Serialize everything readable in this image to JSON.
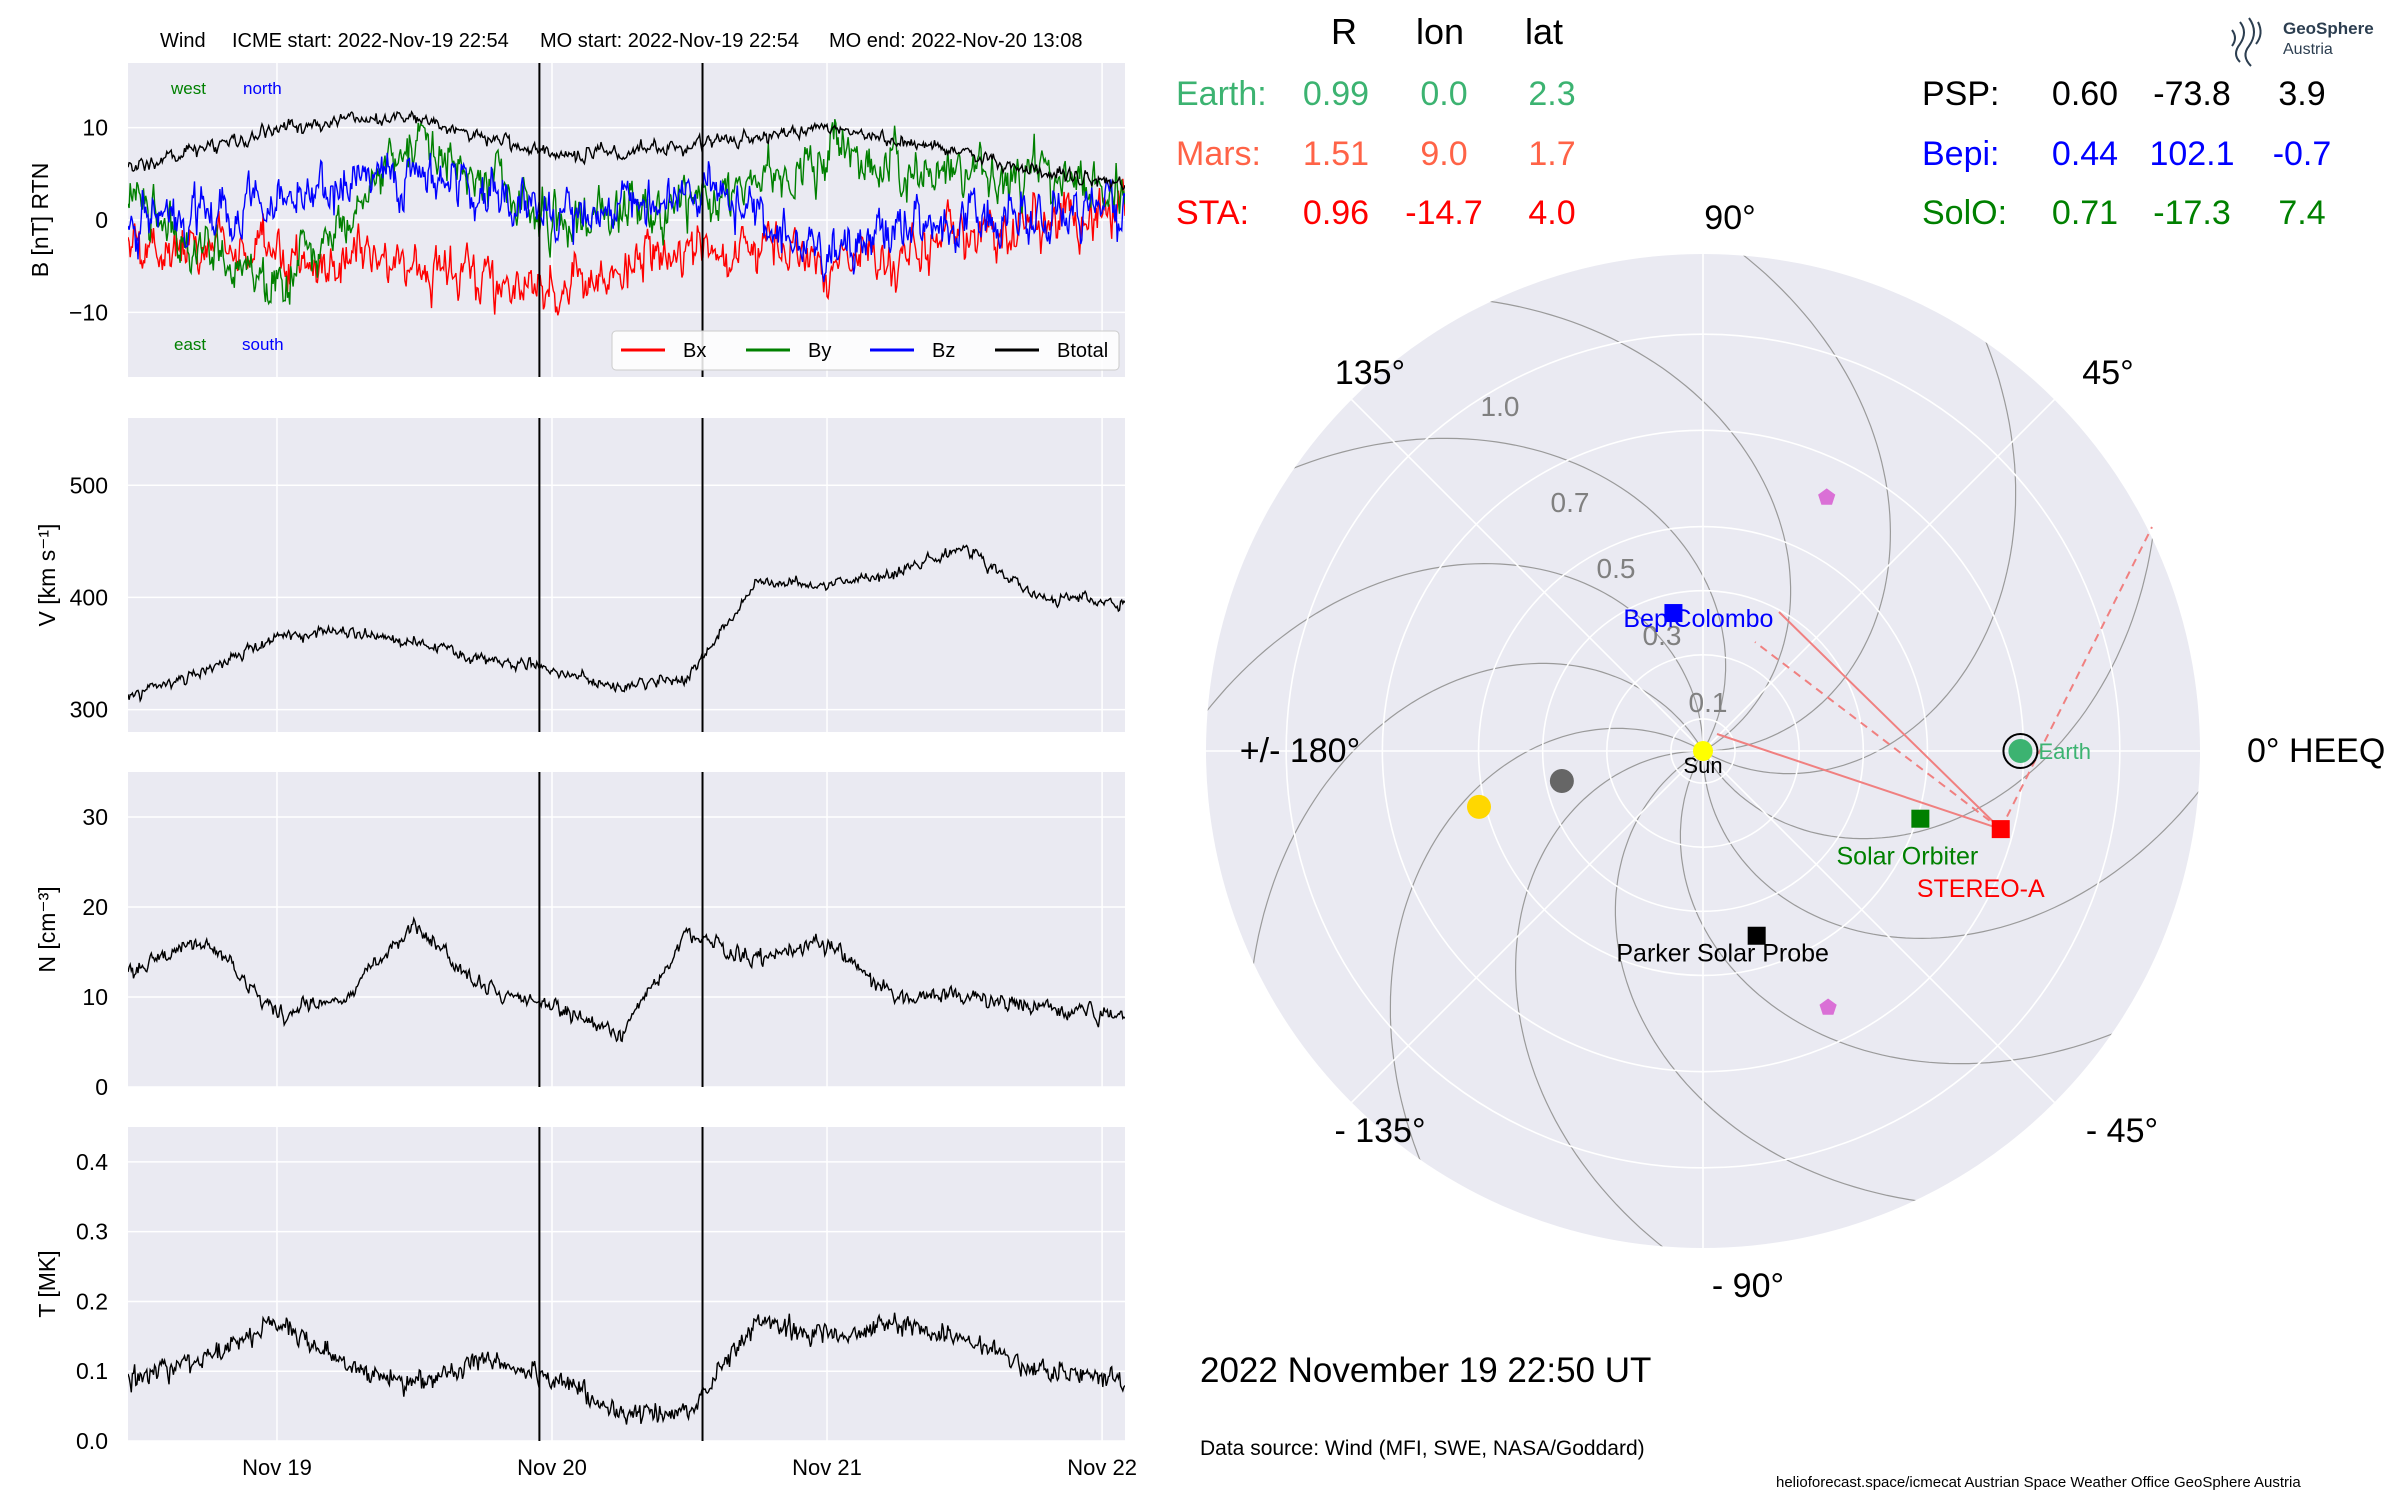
{
  "figure": {
    "header": {
      "instrument": "Wind",
      "icme_start": "ICME start: 2022-Nov-19 22:54",
      "mo_start": "MO start: 2022-Nov-19 22:54",
      "mo_end": "MO end: 2022-Nov-20 13:08"
    },
    "x_ticks": [
      "Nov 19",
      "Nov 20",
      "Nov 21",
      "Nov 22"
    ],
    "footer": {
      "timestamp": "2022 November 19  22:50 UT",
      "data_source": "Data source: Wind (MFI, SWE, NASA/Goddard)",
      "credits": "helioforecast.space/icmecat   Austrian Space Weather Office   GeoSphere Austria",
      "logo_text_1": "GeoSphere",
      "logo_text_2": "Austria"
    },
    "colors": {
      "bx": "#ff0000",
      "by": "#008000",
      "bz": "#0000ff",
      "btotal": "#000000",
      "earth": "#3cb371",
      "mars": "#ff6347",
      "sta": "#ff0000",
      "psp": "#000000",
      "bepi": "#0000ff",
      "solo": "#008000",
      "panel_bg": "#eaeaf2"
    }
  },
  "position_table": {
    "headers": [
      "R",
      "lon",
      "lat"
    ],
    "left_rows": [
      {
        "name": "Earth:",
        "r": "0.99",
        "lon": "0.0",
        "lat": "2.3",
        "color": "#3cb371"
      },
      {
        "name": "Mars:",
        "r": "1.51",
        "lon": "9.0",
        "lat": "1.7",
        "color": "#ff6347"
      },
      {
        "name": "STA:",
        "r": "0.96",
        "lon": "-14.7",
        "lat": "4.0",
        "color": "#ff0000"
      }
    ],
    "right_rows": [
      {
        "name": "PSP:",
        "r": "0.60",
        "lon": "-73.8",
        "lat": "3.9",
        "color": "#000000"
      },
      {
        "name": "Bepi:",
        "r": "0.44",
        "lon": "102.1",
        "lat": "-0.7",
        "color": "#0000ff"
      },
      {
        "name": "SolO:",
        "r": "0.71",
        "lon": "-17.3",
        "lat": "7.4",
        "color": "#008000"
      }
    ]
  },
  "chart_data": [
    {
      "type": "line",
      "panel": "magnetic_field",
      "ylabel": "B [nT] RTN",
      "ylim": [
        -17,
        17
      ],
      "yticks": [
        "10",
        "0",
        "−10"
      ],
      "xlim": [
        "2022-11-18 11:00",
        "2022-11-22 02:00"
      ],
      "corner_labels": {
        "west": "west",
        "north": "north",
        "east": "east",
        "south": "south"
      },
      "legend": {
        "placement": "lower-right",
        "entries": [
          "Bx",
          "By",
          "Bz",
          "Btotal"
        ]
      },
      "series": [
        {
          "name": "Bx",
          "x": [
            "2022-11-18 12:00",
            "2022-11-19 00:00",
            "2022-11-19 12:00",
            "2022-11-20 00:00",
            "2022-11-20 12:00",
            "2022-11-21 00:00",
            "2022-11-21 12:00",
            "2022-11-22 00:00"
          ],
          "values": [
            -2,
            -4,
            -5,
            -8,
            -3,
            -4,
            -2,
            1
          ]
        },
        {
          "name": "By",
          "x": [
            "2022-11-18 12:00",
            "2022-11-19 00:00",
            "2022-11-19 12:00",
            "2022-11-20 00:00",
            "2022-11-20 12:00",
            "2022-11-21 00:00",
            "2022-11-21 12:00",
            "2022-11-22 00:00"
          ],
          "values": [
            2,
            -8,
            9,
            0,
            2,
            7,
            5,
            4
          ]
        },
        {
          "name": "Bz",
          "x": [
            "2022-11-18 12:00",
            "2022-11-19 00:00",
            "2022-11-19 12:00",
            "2022-11-20 00:00",
            "2022-11-20 12:00",
            "2022-11-21 00:00",
            "2022-11-21 12:00",
            "2022-11-22 00:00"
          ],
          "values": [
            0,
            2,
            5,
            0,
            3,
            -3,
            0,
            1
          ]
        },
        {
          "name": "Btotal",
          "x": [
            "2022-11-18 12:00",
            "2022-11-19 00:00",
            "2022-11-19 12:00",
            "2022-11-20 00:00",
            "2022-11-20 12:00",
            "2022-11-21 00:00",
            "2022-11-21 12:00",
            "2022-11-22 00:00"
          ],
          "values": [
            6,
            10,
            11,
            7,
            8,
            10,
            7,
            4
          ]
        }
      ],
      "vlines": [
        "2022-11-19 22:54",
        "2022-11-20 13:08"
      ]
    },
    {
      "type": "line",
      "panel": "speed",
      "ylabel": "V [km s⁻¹]",
      "ylim": [
        280,
        560
      ],
      "yticks": [
        "500",
        "400",
        "300"
      ],
      "series": [
        {
          "name": "V",
          "x": [
            "2022-11-18 11:00",
            "2022-11-18 18:00",
            "2022-11-19 00:00",
            "2022-11-19 06:00",
            "2022-11-19 12:00",
            "2022-11-19 18:00",
            "2022-11-20 00:00",
            "2022-11-20 06:00",
            "2022-11-20 12:00",
            "2022-11-20 18:00",
            "2022-11-21 00:00",
            "2022-11-21 06:00",
            "2022-11-21 12:00",
            "2022-11-21 18:00",
            "2022-11-22 02:00"
          ],
          "values": [
            310,
            335,
            365,
            370,
            360,
            345,
            335,
            320,
            330,
            415,
            410,
            420,
            445,
            400,
            395
          ]
        }
      ]
    },
    {
      "type": "line",
      "panel": "density",
      "ylabel": "N [cm⁻³]",
      "ylim": [
        0,
        35
      ],
      "yticks": [
        "30",
        "20",
        "10",
        "0"
      ],
      "series": [
        {
          "name": "N",
          "x": [
            "2022-11-18 11:00",
            "2022-11-18 18:00",
            "2022-11-19 00:00",
            "2022-11-19 06:00",
            "2022-11-19 12:00",
            "2022-11-19 18:00",
            "2022-11-20 00:00",
            "2022-11-20 06:00",
            "2022-11-20 12:00",
            "2022-11-20 18:00",
            "2022-11-21 00:00",
            "2022-11-21 06:00",
            "2022-11-21 12:00",
            "2022-11-21 18:00",
            "2022-11-22 02:00"
          ],
          "values": [
            13,
            16,
            8,
            10,
            18,
            11,
            9,
            6,
            17,
            14,
            16,
            10,
            10,
            9,
            8
          ]
        }
      ]
    },
    {
      "type": "line",
      "panel": "temperature",
      "ylabel": "T [MK]",
      "ylim": [
        0.0,
        0.45
      ],
      "yticks": [
        "0.4",
        "0.3",
        "0.2",
        "0.1",
        "0.0"
      ],
      "series": [
        {
          "name": "T",
          "x": [
            "2022-11-18 11:00",
            "2022-11-18 18:00",
            "2022-11-19 00:00",
            "2022-11-19 06:00",
            "2022-11-19 12:00",
            "2022-11-19 18:00",
            "2022-11-20 00:00",
            "2022-11-20 06:00",
            "2022-11-20 12:00",
            "2022-11-20 18:00",
            "2022-11-21 00:00",
            "2022-11-21 06:00",
            "2022-11-21 12:00",
            "2022-11-21 18:00",
            "2022-11-22 02:00"
          ],
          "values": [
            0.09,
            0.12,
            0.17,
            0.11,
            0.08,
            0.12,
            0.09,
            0.04,
            0.04,
            0.17,
            0.15,
            0.17,
            0.15,
            0.1,
            0.09
          ]
        }
      ]
    },
    {
      "type": "scatter",
      "panel": "polar_positions",
      "coordinate_system": "0° HEEQ",
      "radial_ticks": [
        "0.1",
        "0.3",
        "0.5",
        "0.7",
        "1.0"
      ],
      "angle_labels": [
        "0° HEEQ",
        "45°",
        "90°",
        "135°",
        "+/- 180°",
        "- 135°",
        "- 90°",
        "- 45°"
      ],
      "points": [
        {
          "name": "Sun",
          "r": 0.0,
          "lon": 0.0,
          "label": "Sun",
          "color": "#ffff00"
        },
        {
          "name": "Earth",
          "r": 0.99,
          "lon": 0.0,
          "label": "Earth",
          "color": "#3cb371"
        },
        {
          "name": "STEREO-A",
          "r": 0.96,
          "lon": -14.7,
          "label": "STEREO-A",
          "color": "#ff0000"
        },
        {
          "name": "Solar Orbiter",
          "r": 0.71,
          "lon": -17.3,
          "label": "Solar Orbiter",
          "color": "#008000"
        },
        {
          "name": "BepiColombo",
          "r": 0.44,
          "lon": 102.1,
          "label": "BepiColombo",
          "color": "#0000ff"
        },
        {
          "name": "Parker Solar Probe",
          "r": 0.6,
          "lon": -73.8,
          "label": "Parker Solar Probe",
          "color": "#000000"
        },
        {
          "name": "Mercury",
          "r": 0.45,
          "lon": -168,
          "label": "",
          "color": "#666666"
        },
        {
          "name": "Venus",
          "r": 0.72,
          "lon": -166,
          "label": "",
          "color": "#ffd700"
        },
        {
          "name": "Comet-1",
          "r": 0.88,
          "lon": 64,
          "label": "",
          "color": "#da70d6"
        },
        {
          "name": "Comet-2",
          "r": 0.89,
          "lon": -64,
          "label": "",
          "color": "#da70d6"
        }
      ]
    }
  ]
}
